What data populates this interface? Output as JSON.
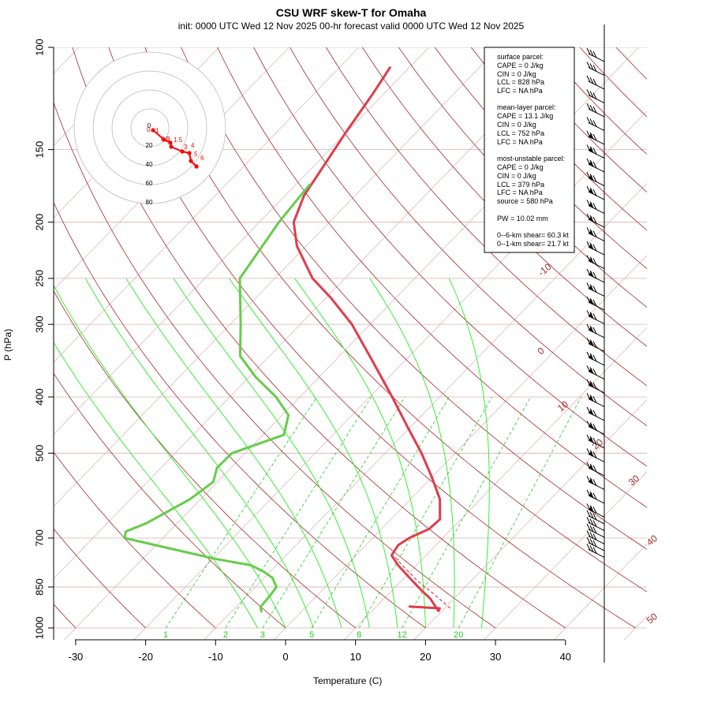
{
  "title": "CSU WRF skew-T for Omaha",
  "subtitle": "init: 0000 UTC Wed 12 Nov 2025     00-hr forecast valid 0000 UTC Wed 12 Nov 2025",
  "chart_data": {
    "type": "line",
    "xlabel": "Temperature (C)",
    "ylabel": "P (hPa)",
    "xlim": [
      -33,
      45
    ],
    "ylim": [
      1000,
      100
    ],
    "y_scale": "log",
    "skew": "skewed temperature axis",
    "x_ticks": [
      -30,
      -20,
      -10,
      0,
      10,
      20,
      30,
      40
    ],
    "y_ticks": [
      100,
      150,
      200,
      250,
      300,
      400,
      500,
      700,
      850,
      1000
    ],
    "isotherm_labels": [
      -10,
      0,
      10,
      20,
      30,
      40,
      50
    ],
    "mixing_ratio_labels": [
      "1",
      "2",
      "3",
      "5",
      "8",
      "12",
      "20"
    ],
    "series": [
      {
        "name": "temperature",
        "color": "#e03c4c",
        "points": [
          {
            "p": 918,
            "t": 14.6
          },
          {
            "p": 925,
            "t": 19.3
          },
          {
            "p": 935,
            "t": 19.5
          },
          {
            "p": 890,
            "t": 16.6
          },
          {
            "p": 860,
            "t": 14.1
          },
          {
            "p": 820,
            "t": 10.8
          },
          {
            "p": 780,
            "t": 7.4
          },
          {
            "p": 750,
            "t": 5.1
          },
          {
            "p": 720,
            "t": 4.6
          },
          {
            "p": 700,
            "t": 5.2
          },
          {
            "p": 675,
            "t": 6.8
          },
          {
            "p": 650,
            "t": 7.0
          },
          {
            "p": 600,
            "t": 4.2
          },
          {
            "p": 550,
            "t": 0.0
          },
          {
            "p": 500,
            "t": -4.8
          },
          {
            "p": 450,
            "t": -10.5
          },
          {
            "p": 400,
            "t": -16.8
          },
          {
            "p": 350,
            "t": -24.1
          },
          {
            "p": 300,
            "t": -32.6
          },
          {
            "p": 270,
            "t": -39.3
          },
          {
            "p": 250,
            "t": -44.6
          },
          {
            "p": 220,
            "t": -51.3
          },
          {
            "p": 200,
            "t": -55.1
          },
          {
            "p": 180,
            "t": -57.3
          },
          {
            "p": 160,
            "t": -58.6
          },
          {
            "p": 140,
            "t": -60.1
          },
          {
            "p": 120,
            "t": -61.6
          },
          {
            "p": 108,
            "t": -62.8
          }
        ]
      },
      {
        "name": "dewpoint",
        "color": "#66cc4c",
        "points": [
          {
            "p": 940,
            "t": -5.6
          },
          {
            "p": 920,
            "t": -6.5
          },
          {
            "p": 880,
            "t": -6.7
          },
          {
            "p": 850,
            "t": -7.0
          },
          {
            "p": 820,
            "t": -8.8
          },
          {
            "p": 800,
            "t": -10.9
          },
          {
            "p": 780,
            "t": -13.6
          },
          {
            "p": 760,
            "t": -19.7
          },
          {
            "p": 700,
            "t": -35.5
          },
          {
            "p": 682,
            "t": -36.2
          },
          {
            "p": 660,
            "t": -34.4
          },
          {
            "p": 600,
            "t": -31.5
          },
          {
            "p": 560,
            "t": -30.6
          },
          {
            "p": 530,
            "t": -32.0
          },
          {
            "p": 500,
            "t": -31.9
          },
          {
            "p": 465,
            "t": -27.0
          },
          {
            "p": 430,
            "t": -29.1
          },
          {
            "p": 400,
            "t": -33.4
          },
          {
            "p": 370,
            "t": -39.0
          },
          {
            "p": 340,
            "t": -44.2
          },
          {
            "p": 300,
            "t": -48.5
          },
          {
            "p": 250,
            "t": -55.0
          },
          {
            "p": 200,
            "t": -57.2
          },
          {
            "p": 180,
            "t": -57.8
          },
          {
            "p": 172,
            "t": -58.0
          }
        ]
      },
      {
        "name": "parcel",
        "color": "#e03c4c",
        "style": "dashed",
        "points": [
          {
            "p": 925,
            "t": 20.8
          },
          {
            "p": 880,
            "t": 17.0
          },
          {
            "p": 828,
            "t": 12.2
          },
          {
            "p": 780,
            "t": 8.0
          },
          {
            "p": 750,
            "t": 5.4
          }
        ]
      }
    ],
    "wind_barbs_column": "right of plot, surface to 100 hPa",
    "hodograph": {
      "ring_labels": [
        "0",
        "20",
        "40",
        "60",
        "80"
      ],
      "point_labels": [
        "0",
        "0.5",
        "1",
        "1.5",
        "2",
        "3",
        "4",
        "5",
        "6"
      ]
    }
  },
  "parameters": {
    "surface_parcel": {
      "header": "surface parcel:",
      "lines": [
        "CAPE = 0 J/kg",
        "CIN = 0 J/kg",
        "LCL = 828 hPa",
        "LFC = NA hPa"
      ]
    },
    "mean_layer_parcel": {
      "header": "mean-layer parcel:",
      "lines": [
        "CAPE = 13.1 J/kg",
        "CIN = 0 J/kg",
        "LCL = 752 hPa",
        "LFC = NA hPa"
      ]
    },
    "most_unstable_parcel": {
      "header": "most-unstable parcel:",
      "lines": [
        "CAPE = 0 J/kg",
        "CIN = 0 J/kg",
        "LCL = 379 hPa",
        "LFC = NA hPa",
        "source = 580 hPa"
      ]
    },
    "pw": "PW =  10.02 mm",
    "shear_0_6": "0--6-km shear= 60.3 kt",
    "shear_0_1": "0--1-km shear= 21.7 kt"
  },
  "colors": {
    "isotherm": "#a52a2a",
    "adiabat": "#a52a2a",
    "moist_adiabat": "#22ee22",
    "mixing_ratio": "#22cc22",
    "hodograph_trace": "#ff0000"
  }
}
